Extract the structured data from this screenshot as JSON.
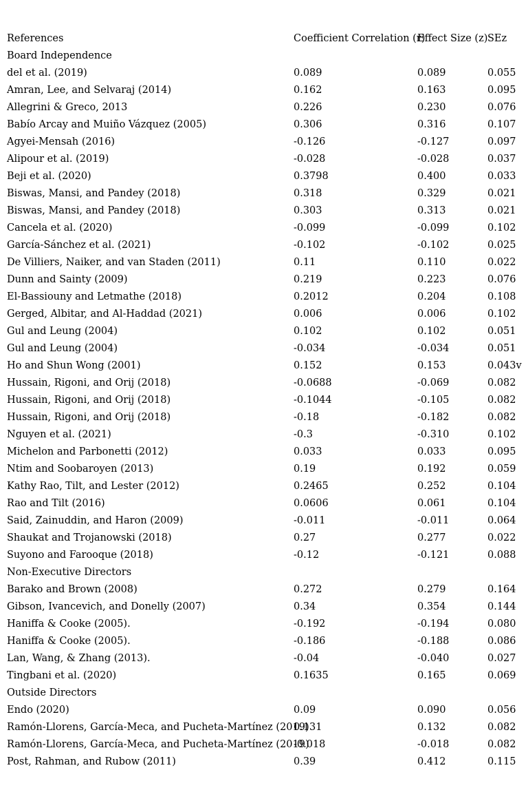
{
  "table": {
    "headers": [
      "References",
      "Coefficient Correlation (r)",
      "Effect Size (z)",
      "SEz"
    ],
    "rows": [
      {
        "type": "section",
        "label": "Board Independence"
      },
      {
        "type": "data",
        "label": "del et al. (2019)",
        "r": "0.089",
        "z": "0.089",
        "sez": "0.055"
      },
      {
        "type": "data",
        "label": "Amran, Lee, and Selvaraj (2014)",
        "r": "0.162",
        "z": "0.163",
        "sez": "0.095"
      },
      {
        "type": "data",
        "label": "Allegrini & Greco, 2013",
        "r": "0.226",
        "z": "0.230",
        "sez": "0.076"
      },
      {
        "type": "data",
        "label": "Babío Arcay and Muiño Vázquez (2005)",
        "r": "0.306",
        "z": "0.316",
        "sez": "0.107"
      },
      {
        "type": "data",
        "label": "Agyei-Mensah (2016)",
        "r": "-0.126",
        "z": "-0.127",
        "sez": "0.097"
      },
      {
        "type": "data",
        "label": "Alipour et al. (2019)",
        "r": "-0.028",
        "z": "-0.028",
        "sez": "0.037"
      },
      {
        "type": "data",
        "label": "Beji et al. (2020)",
        "r": "0.3798",
        "z": "0.400",
        "sez": "0.033"
      },
      {
        "type": "data",
        "label": "Biswas, Mansi, and Pandey (2018)",
        "r": "0.318",
        "z": "0.329",
        "sez": "0.021"
      },
      {
        "type": "data",
        "label": "Biswas, Mansi, and Pandey (2018)",
        "r": "0.303",
        "z": "0.313",
        "sez": "0.021"
      },
      {
        "type": "data",
        "label": "Cancela et al. (2020)",
        "r": "-0.099",
        "z": "-0.099",
        "sez": "0.102"
      },
      {
        "type": "data",
        "label": "García-Sánchez et al. (2021)",
        "r": "-0.102",
        "z": "-0.102",
        "sez": "0.025"
      },
      {
        "type": "data",
        "label": "De Villiers, Naiker, and van Staden (2011)",
        "r": "0.11",
        "z": "0.110",
        "sez": "0.022"
      },
      {
        "type": "data",
        "label": "Dunn and Sainty (2009)",
        "r": "0.219",
        "z": "0.223",
        "sez": "0.076"
      },
      {
        "type": "data",
        "label": "El-Bassiouny and Letmathe (2018)",
        "r": "0.2012",
        "z": "0.204",
        "sez": "0.108"
      },
      {
        "type": "data",
        "label": "Gerged, Albitar, and Al-Haddad (2021)",
        "r": "0.006",
        "z": "0.006",
        "sez": "0.102"
      },
      {
        "type": "data",
        "label": "Gul and Leung (2004)",
        "r": "0.102",
        "z": "0.102",
        "sez": "0.051"
      },
      {
        "type": "data",
        "label": "Gul and Leung (2004)",
        "r": "-0.034",
        "z": "-0.034",
        "sez": "0.051"
      },
      {
        "type": "data",
        "label": "Ho and Shun Wong (2001)",
        "r": "0.152",
        "z": "0.153",
        "sez": "0.043v"
      },
      {
        "type": "data",
        "label": "Hussain, Rigoni, and Orij (2018)",
        "r": "-0.0688",
        "z": "-0.069",
        "sez": "0.082"
      },
      {
        "type": "data",
        "label": "Hussain, Rigoni, and Orij (2018)",
        "r": "-0.1044",
        "z": "-0.105",
        "sez": "0.082"
      },
      {
        "type": "data",
        "label": "Hussain, Rigoni, and Orij (2018)",
        "r": "-0.18",
        "z": "-0.182",
        "sez": "0.082"
      },
      {
        "type": "data",
        "label": "Nguyen et al. (2021)",
        "r": "-0.3",
        "z": "-0.310",
        "sez": "0.102"
      },
      {
        "type": "data",
        "label": "Michelon and Parbonetti (2012)",
        "r": "0.033",
        "z": "0.033",
        "sez": "0.095"
      },
      {
        "type": "data",
        "label": "Ntim and Soobaroyen (2013)",
        "r": "0.19",
        "z": "0.192",
        "sez": "0.059"
      },
      {
        "type": "data",
        "label": "Kathy Rao, Tilt, and Lester (2012)",
        "r": "0.2465",
        "z": "0.252",
        "sez": "0.104"
      },
      {
        "type": "data",
        "label": "Rao and Tilt (2016)",
        "r": "0.0606",
        "z": "0.061",
        "sez": "0.104"
      },
      {
        "type": "data",
        "label": "Said, Zainuddin, and Haron (2009)",
        "r": "-0.011",
        "z": "-0.011",
        "sez": "0.064"
      },
      {
        "type": "data",
        "label": "Shaukat and Trojanowski (2018)",
        "r": "0.27",
        "z": "0.277",
        "sez": "0.022"
      },
      {
        "type": "data",
        "label": "Suyono and Farooque (2018)",
        "r": "-0.12",
        "z": "-0.121",
        "sez": "0.088"
      },
      {
        "type": "section",
        "label": "Non-Executive Directors"
      },
      {
        "type": "data",
        "label": "Barako and Brown (2008)",
        "r": "0.272",
        "z": "0.279",
        "sez": "0.164"
      },
      {
        "type": "data",
        "label": "Gibson, Ivancevich, and Donelly (2007)",
        "r": "0.34",
        "z": "0.354",
        "sez": "0.144"
      },
      {
        "type": "data",
        "label": "Haniffa & Cooke (2005).",
        "r": "-0.192",
        "z": "-0.194",
        "sez": "0.080"
      },
      {
        "type": "data",
        "label": "Haniffa & Cooke (2005).",
        "r": "-0.186",
        "z": "-0.188",
        "sez": "0.086"
      },
      {
        "type": "data",
        "label": "Lan, Wang, & Zhang (2013).",
        "r": "-0.04",
        "z": "-0.040",
        "sez": "0.027"
      },
      {
        "type": "data",
        "label": "Tingbani et al. (2020)",
        "r": "0.1635",
        "z": "0.165",
        "sez": "0.069"
      },
      {
        "type": "section",
        "label": "Outside Directors"
      },
      {
        "type": "data",
        "label": "Endo (2020)",
        "r": "0.09",
        "z": "0.090",
        "sez": "0.056"
      },
      {
        "type": "data",
        "label": "Ramón-Llorens, García-Meca, and Pucheta-Martínez (2019)",
        "r": "0.131",
        "z": "0.132",
        "sez": "0.082"
      },
      {
        "type": "data",
        "label": "Ramón-Llorens, García-Meca, and Pucheta-Martínez (2019)",
        "r": "-0.018",
        "z": "-0.018",
        "sez": "0.082"
      },
      {
        "type": "data",
        "label": "Post, Rahman, and Rubow (2011)",
        "r": "0.39",
        "z": "0.412",
        "sez": "0.115"
      }
    ]
  }
}
